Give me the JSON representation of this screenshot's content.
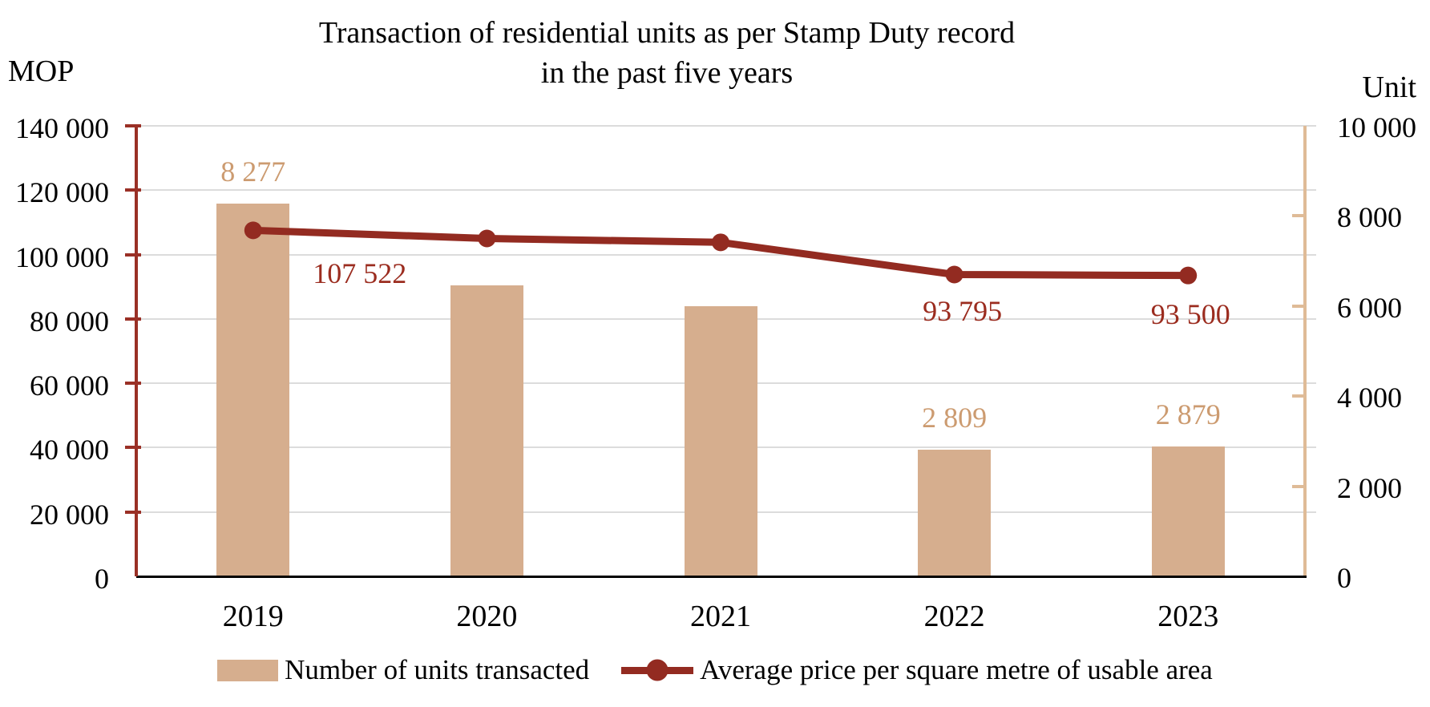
{
  "title": {
    "line1": "Transaction of residential units as per Stamp Duty record",
    "line2": "in the past five years"
  },
  "axes": {
    "left": {
      "title": "MOP",
      "ticks": [
        "0",
        "20 000",
        "40 000",
        "60 000",
        "80 000",
        "100 000",
        "120 000",
        "140 000"
      ]
    },
    "right": {
      "title": "Unit",
      "ticks": [
        "0",
        "2 000",
        "4 000",
        "6 000",
        "8 000",
        "10 000"
      ]
    },
    "x": {
      "categories": [
        "2019",
        "2020",
        "2021",
        "2022",
        "2023"
      ]
    }
  },
  "chart_data": {
    "type": "combo-bar-line",
    "title": "Transaction of residential units as per Stamp Duty record in the past five years",
    "categories": [
      "2019",
      "2020",
      "2021",
      "2022",
      "2023"
    ],
    "left_axis_label": "MOP",
    "right_axis_label": "Unit",
    "left_axis_range": [
      0,
      140000
    ],
    "right_axis_range": [
      0,
      10000
    ],
    "grid": true,
    "legend_position": "bottom",
    "series": [
      {
        "name": "Number of units transacted",
        "type": "bar",
        "axis": "right",
        "values": [
          8277,
          6460,
          6000,
          2809,
          2879
        ],
        "labels": [
          "8 277",
          null,
          null,
          "2 809",
          "2 879"
        ]
      },
      {
        "name": "Average price per square metre of usable area",
        "type": "line",
        "axis": "left",
        "values": [
          107522,
          105000,
          103800,
          93795,
          93500
        ],
        "labels": [
          "107 522",
          null,
          null,
          "93 795",
          "93 500"
        ]
      }
    ]
  },
  "legend": [
    {
      "label": "Number of units transacted",
      "type": "bar"
    },
    {
      "label": "Average price per square metre of usable area",
      "type": "line"
    }
  ],
  "colors": {
    "bar_fill": "#D6AE8E",
    "bar_label_text": "#CC9B70",
    "right_axis_line": "#DFBB97",
    "line_series": "#932B21",
    "line_label_text": "#9B2C1F",
    "left_axis_line": "#9A3026",
    "gridline": "#DCDCDC",
    "baseline": "#000000",
    "text": "#000000"
  }
}
